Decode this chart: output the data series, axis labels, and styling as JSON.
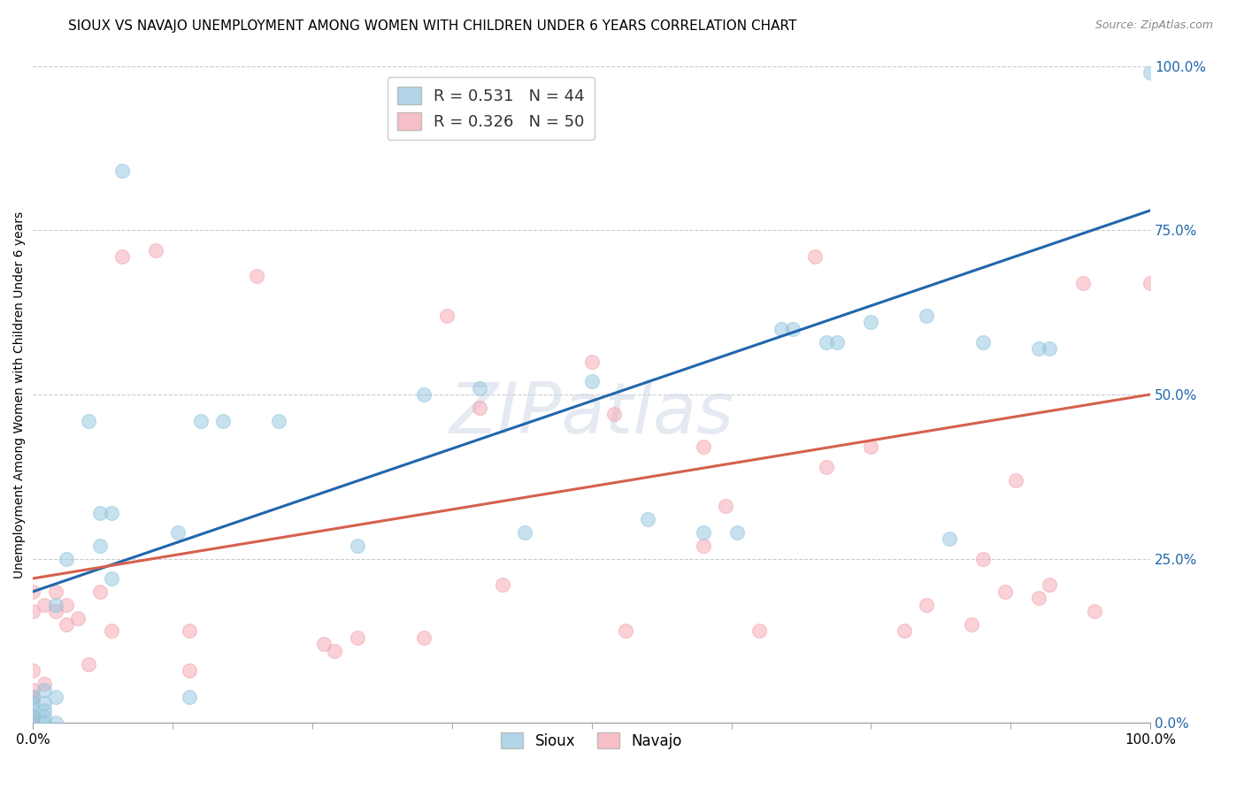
{
  "title": "SIOUX VS NAVAJO UNEMPLOYMENT AMONG WOMEN WITH CHILDREN UNDER 6 YEARS CORRELATION CHART",
  "source": "Source: ZipAtlas.com",
  "ylabel": "Unemployment Among Women with Children Under 6 years",
  "sioux_R": 0.531,
  "sioux_N": 44,
  "navajo_R": 0.326,
  "navajo_N": 50,
  "sioux_color": "#92c5de",
  "navajo_color": "#f4a4b0",
  "sioux_line_color": "#2166ac",
  "navajo_line_color": "#d6604d",
  "background_color": "#ffffff",
  "watermark": "ZIPatlas",
  "sioux_x": [
    0.0,
    0.0,
    0.0,
    0.0,
    0.0,
    0.01,
    0.01,
    0.01,
    0.01,
    0.01,
    0.02,
    0.02,
    0.02,
    0.03,
    0.05,
    0.06,
    0.06,
    0.07,
    0.07,
    0.08,
    0.13,
    0.14,
    0.15,
    0.17,
    0.22,
    0.29,
    0.35,
    0.4,
    0.44,
    0.5,
    0.55,
    0.6,
    0.63,
    0.67,
    0.68,
    0.71,
    0.72,
    0.75,
    0.8,
    0.82,
    0.85,
    0.9,
    0.91,
    1.0
  ],
  "sioux_y": [
    0.0,
    0.01,
    0.02,
    0.03,
    0.04,
    0.0,
    0.01,
    0.02,
    0.03,
    0.05,
    0.0,
    0.04,
    0.18,
    0.25,
    0.46,
    0.27,
    0.32,
    0.22,
    0.32,
    0.84,
    0.29,
    0.04,
    0.46,
    0.46,
    0.46,
    0.27,
    0.5,
    0.51,
    0.29,
    0.52,
    0.31,
    0.29,
    0.29,
    0.6,
    0.6,
    0.58,
    0.58,
    0.61,
    0.62,
    0.28,
    0.58,
    0.57,
    0.57,
    0.99
  ],
  "navajo_x": [
    0.0,
    0.0,
    0.0,
    0.0,
    0.0,
    0.0,
    0.0,
    0.01,
    0.01,
    0.02,
    0.02,
    0.03,
    0.03,
    0.04,
    0.05,
    0.06,
    0.07,
    0.08,
    0.11,
    0.14,
    0.14,
    0.2,
    0.26,
    0.27,
    0.29,
    0.35,
    0.37,
    0.4,
    0.42,
    0.5,
    0.52,
    0.53,
    0.6,
    0.6,
    0.62,
    0.65,
    0.7,
    0.71,
    0.75,
    0.78,
    0.8,
    0.84,
    0.85,
    0.87,
    0.88,
    0.9,
    0.91,
    0.94,
    0.95,
    1.0
  ],
  "navajo_y": [
    0.0,
    0.01,
    0.04,
    0.05,
    0.08,
    0.17,
    0.2,
    0.06,
    0.18,
    0.17,
    0.2,
    0.15,
    0.18,
    0.16,
    0.09,
    0.2,
    0.14,
    0.71,
    0.72,
    0.08,
    0.14,
    0.68,
    0.12,
    0.11,
    0.13,
    0.13,
    0.62,
    0.48,
    0.21,
    0.55,
    0.47,
    0.14,
    0.27,
    0.42,
    0.33,
    0.14,
    0.71,
    0.39,
    0.42,
    0.14,
    0.18,
    0.15,
    0.25,
    0.2,
    0.37,
    0.19,
    0.21,
    0.67,
    0.17,
    0.67
  ],
  "sioux_line_x0": 0.0,
  "sioux_line_y0": 0.2,
  "sioux_line_x1": 1.0,
  "sioux_line_y1": 0.78,
  "navajo_line_x0": 0.0,
  "navajo_line_y0": 0.22,
  "navajo_line_x1": 1.0,
  "navajo_line_y1": 0.5,
  "xlim": [
    0.0,
    1.0
  ],
  "ylim": [
    0.0,
    1.0
  ],
  "right_yticks": [
    0.0,
    0.25,
    0.5,
    0.75,
    1.0
  ],
  "right_yticklabels": [
    "0.0%",
    "25.0%",
    "50.0%",
    "75.0%",
    "100.0%"
  ],
  "marker_size": 130,
  "title_fontsize": 11,
  "axis_label_fontsize": 10,
  "legend_fontsize": 13,
  "right_tick_color": "#2166ac"
}
